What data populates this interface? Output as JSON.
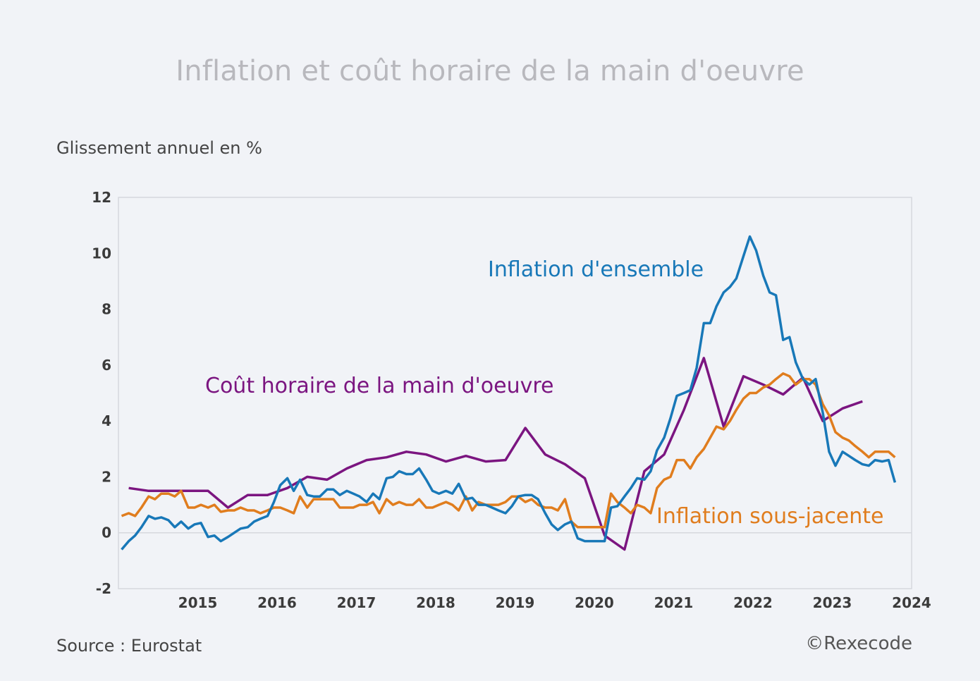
{
  "title": "Inflation et coût horaire de la main d'oeuvre",
  "source": "Source : Eurostat",
  "copyright": "©Rexecode",
  "chart_data": {
    "type": "line",
    "ylabel": "Glissement annuel en %",
    "ylim": [
      -2,
      12
    ],
    "yticks": [
      -2,
      0,
      2,
      4,
      6,
      8,
      10,
      12
    ],
    "xlim": [
      2014.5,
      2024.5
    ],
    "xticks": [
      "2015",
      "2016",
      "2017",
      "2018",
      "2019",
      "2020",
      "2021",
      "2022",
      "2023",
      "2024"
    ],
    "grid": false,
    "series": [
      {
        "name": "Inflation d'ensemble",
        "color": "#1878b8",
        "x": [
          2014.54,
          2014.63,
          2014.71,
          2014.79,
          2014.88,
          2014.96,
          2015.04,
          2015.13,
          2015.21,
          2015.29,
          2015.38,
          2015.46,
          2015.54,
          2015.63,
          2015.71,
          2015.79,
          2015.88,
          2015.96,
          2016.04,
          2016.13,
          2016.21,
          2016.29,
          2016.38,
          2016.46,
          2016.54,
          2016.63,
          2016.71,
          2016.79,
          2016.88,
          2016.96,
          2017.04,
          2017.13,
          2017.21,
          2017.29,
          2017.38,
          2017.46,
          2017.54,
          2017.63,
          2017.71,
          2017.79,
          2017.88,
          2017.96,
          2018.04,
          2018.13,
          2018.21,
          2018.29,
          2018.38,
          2018.46,
          2018.54,
          2018.63,
          2018.71,
          2018.79,
          2018.88,
          2018.96,
          2019.04,
          2019.13,
          2019.21,
          2019.29,
          2019.38,
          2019.46,
          2019.54,
          2019.63,
          2019.71,
          2019.79,
          2019.88,
          2019.96,
          2020.04,
          2020.13,
          2020.21,
          2020.29,
          2020.38,
          2020.46,
          2020.54,
          2020.63,
          2020.71,
          2020.79,
          2020.88,
          2020.96,
          2021.04,
          2021.13,
          2021.21,
          2021.29,
          2021.38,
          2021.46,
          2021.54,
          2021.63,
          2021.71,
          2021.79,
          2021.88,
          2021.96,
          2022.04,
          2022.13,
          2022.21,
          2022.29,
          2022.38,
          2022.46,
          2022.54,
          2022.63,
          2022.71,
          2022.79,
          2022.88,
          2022.96,
          2023.04,
          2023.13,
          2023.21,
          2023.29,
          2023.38,
          2023.46,
          2023.54,
          2023.63,
          2023.71,
          2023.79,
          2023.88,
          2023.96,
          2024.04,
          2024.13,
          2024.21,
          2024.29
        ],
        "values": [
          -0.6,
          -0.3,
          -0.1,
          0.2,
          0.6,
          0.5,
          0.55,
          0.45,
          0.2,
          0.4,
          0.15,
          0.3,
          0.35,
          -0.15,
          -0.1,
          -0.3,
          -0.15,
          0.0,
          0.15,
          0.2,
          0.4,
          0.5,
          0.6,
          1.1,
          1.7,
          1.95,
          1.5,
          1.9,
          1.35,
          1.3,
          1.3,
          1.55,
          1.55,
          1.35,
          1.5,
          1.4,
          1.3,
          1.1,
          1.4,
          1.2,
          1.95,
          2.0,
          2.2,
          2.1,
          2.1,
          2.3,
          1.9,
          1.5,
          1.4,
          1.5,
          1.4,
          1.75,
          1.2,
          1.25,
          1.0,
          1.0,
          0.9,
          0.8,
          0.7,
          0.95,
          1.3,
          1.35,
          1.35,
          1.2,
          0.7,
          0.3,
          0.1,
          0.3,
          0.4,
          -0.2,
          -0.3,
          -0.3,
          -0.3,
          -0.3,
          0.9,
          0.95,
          1.3,
          1.6,
          1.95,
          1.9,
          2.2,
          2.95,
          3.4,
          4.1,
          4.9,
          5.0,
          5.1,
          5.9,
          7.5,
          7.5,
          8.1,
          8.6,
          8.8,
          9.1,
          9.9,
          10.6,
          10.1,
          9.2,
          8.6,
          8.5,
          6.9,
          7.0,
          6.1,
          5.5,
          5.3,
          5.5,
          4.3,
          2.9,
          2.4,
          2.9,
          2.75,
          2.6,
          2.45,
          2.4,
          2.6,
          2.55,
          2.6,
          1.8
        ]
      },
      {
        "name": "Inflation sous-jacente",
        "color": "#e07d1e",
        "x": [
          2014.54,
          2014.63,
          2014.71,
          2014.79,
          2014.88,
          2014.96,
          2015.04,
          2015.13,
          2015.21,
          2015.29,
          2015.38,
          2015.46,
          2015.54,
          2015.63,
          2015.71,
          2015.79,
          2015.88,
          2015.96,
          2016.04,
          2016.13,
          2016.21,
          2016.29,
          2016.38,
          2016.46,
          2016.54,
          2016.63,
          2016.71,
          2016.79,
          2016.88,
          2016.96,
          2017.04,
          2017.13,
          2017.21,
          2017.29,
          2017.38,
          2017.46,
          2017.54,
          2017.63,
          2017.71,
          2017.79,
          2017.88,
          2017.96,
          2018.04,
          2018.13,
          2018.21,
          2018.29,
          2018.38,
          2018.46,
          2018.54,
          2018.63,
          2018.71,
          2018.79,
          2018.88,
          2018.96,
          2019.04,
          2019.13,
          2019.21,
          2019.29,
          2019.38,
          2019.46,
          2019.54,
          2019.63,
          2019.71,
          2019.79,
          2019.88,
          2019.96,
          2020.04,
          2020.13,
          2020.21,
          2020.29,
          2020.38,
          2020.46,
          2020.54,
          2020.63,
          2020.71,
          2020.79,
          2020.88,
          2020.96,
          2021.04,
          2021.13,
          2021.21,
          2021.29,
          2021.38,
          2021.46,
          2021.54,
          2021.63,
          2021.71,
          2021.79,
          2021.88,
          2021.96,
          2022.04,
          2022.13,
          2022.21,
          2022.29,
          2022.38,
          2022.46,
          2022.54,
          2022.63,
          2022.71,
          2022.79,
          2022.88,
          2022.96,
          2023.04,
          2023.13,
          2023.21,
          2023.29,
          2023.38,
          2023.46,
          2023.54,
          2023.63,
          2023.71,
          2023.79,
          2023.88,
          2023.96,
          2024.04,
          2024.13,
          2024.21,
          2024.29
        ],
        "values": [
          0.6,
          0.7,
          0.6,
          0.9,
          1.3,
          1.2,
          1.4,
          1.4,
          1.3,
          1.5,
          0.9,
          0.9,
          1.0,
          0.9,
          1.0,
          0.75,
          0.8,
          0.8,
          0.9,
          0.8,
          0.8,
          0.7,
          0.8,
          0.9,
          0.9,
          0.8,
          0.7,
          1.3,
          0.9,
          1.2,
          1.2,
          1.2,
          1.2,
          0.9,
          0.9,
          0.9,
          1.0,
          1.0,
          1.1,
          0.7,
          1.2,
          1.0,
          1.1,
          1.0,
          1.0,
          1.2,
          0.9,
          0.9,
          1.0,
          1.1,
          1.0,
          0.8,
          1.3,
          0.8,
          1.1,
          1.0,
          1.0,
          1.0,
          1.1,
          1.3,
          1.3,
          1.1,
          1.2,
          1.0,
          0.9,
          0.9,
          0.8,
          1.2,
          0.4,
          0.2,
          0.2,
          0.2,
          0.2,
          0.2,
          1.4,
          1.1,
          0.9,
          0.7,
          1.0,
          0.9,
          0.7,
          1.6,
          1.9,
          2.0,
          2.6,
          2.6,
          2.3,
          2.7,
          3.0,
          3.4,
          3.8,
          3.7,
          4.0,
          4.4,
          4.8,
          5.0,
          5.0,
          5.2,
          5.3,
          5.5,
          5.7,
          5.6,
          5.3,
          5.5,
          5.5,
          5.3,
          4.6,
          4.2,
          3.6,
          3.4,
          3.3,
          3.1,
          2.9,
          2.7,
          2.9,
          2.9,
          2.9,
          2.7
        ]
      },
      {
        "name": "Coût horaire de la main d'oeuvre",
        "color": "#7b1580",
        "x": [
          2014.63,
          2014.88,
          2015.13,
          2015.38,
          2015.63,
          2015.88,
          2016.13,
          2016.38,
          2016.63,
          2016.88,
          2017.13,
          2017.38,
          2017.63,
          2017.88,
          2018.13,
          2018.38,
          2018.63,
          2018.88,
          2019.13,
          2019.38,
          2019.63,
          2019.88,
          2020.13,
          2020.38,
          2020.63,
          2020.88,
          2021.13,
          2021.38,
          2021.63,
          2021.88,
          2022.13,
          2022.38,
          2022.63,
          2022.88,
          2023.13,
          2023.38,
          2023.63,
          2023.88
        ],
        "values": [
          1.6,
          1.5,
          1.5,
          1.5,
          1.5,
          0.9,
          1.35,
          1.35,
          1.6,
          2.0,
          1.9,
          2.3,
          2.6,
          2.7,
          2.9,
          2.8,
          2.55,
          2.75,
          2.55,
          2.6,
          3.75,
          2.8,
          2.45,
          1.95,
          -0.1,
          -0.6,
          2.2,
          2.8,
          4.4,
          6.25,
          3.8,
          5.6,
          5.3,
          4.95,
          5.55,
          4.0,
          4.45,
          4.7
        ]
      }
    ],
    "annotations": [
      {
        "series": "Inflation d'ensemble",
        "text": "Inflation d'ensemble"
      },
      {
        "series": "Coût horaire de la main d'oeuvre",
        "text": "Coût horaire de la main d'oeuvre"
      },
      {
        "series": "Inflation sous-jacente",
        "text": "Inflation sous-jacente"
      }
    ]
  }
}
